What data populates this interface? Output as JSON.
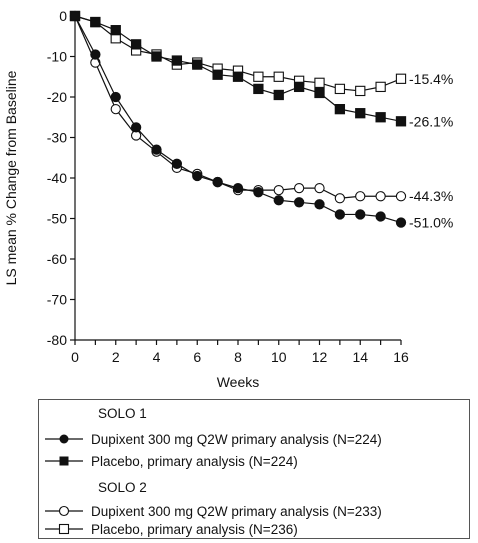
{
  "chart_data": {
    "type": "line",
    "title": "",
    "xlabel": "Weeks",
    "ylabel": "LS mean % Change from Baseline",
    "xlim": [
      0,
      16
    ],
    "ylim": [
      -80,
      0
    ],
    "x_ticks": [
      "0",
      "2",
      "4",
      "6",
      "8",
      "10",
      "12",
      "14",
      "16"
    ],
    "y_ticks": [
      "0",
      "-10",
      "-20",
      "-30",
      "-40",
      "-50",
      "-60",
      "-70",
      "-80"
    ],
    "grid": false,
    "legend_position": "bottom",
    "x": [
      0,
      1,
      2,
      3,
      4,
      5,
      6,
      7,
      8,
      9,
      10,
      11,
      12,
      13,
      14,
      15,
      16
    ],
    "series": [
      {
        "name": "Dupixent 300 mg Q2W primary analysis (N=224)",
        "group": "SOLO 1",
        "marker": "filled-circle",
        "values": [
          0,
          -9.5,
          -20,
          -27.5,
          -33,
          -36.5,
          -39.5,
          -41,
          -42.5,
          -43.5,
          -45.5,
          -46,
          -46.5,
          -49,
          -49,
          -49.5,
          -51
        ],
        "end_label": "-51.0%"
      },
      {
        "name": "Placebo, primary analysis (N=224)",
        "group": "SOLO 1",
        "marker": "filled-square",
        "values": [
          0,
          -1.5,
          -3.5,
          -7,
          -10,
          -11,
          -12,
          -14.5,
          -15,
          -18,
          -19.5,
          -17.5,
          -19,
          -23,
          -24,
          -25,
          -26
        ],
        "end_label": "-26.1%"
      },
      {
        "name": "Dupixent 300 mg Q2W primary analysis (N=233)",
        "group": "SOLO 2",
        "marker": "open-circle",
        "values": [
          0,
          -11.5,
          -23,
          -29.5,
          -33.5,
          -37.5,
          -39,
          -41,
          -43,
          -43,
          -43,
          -42.5,
          -42.5,
          -45,
          -44.5,
          -44.5,
          -44.5
        ],
        "end_label": "-44.3%"
      },
      {
        "name": "Placebo, primary analysis (N=236)",
        "group": "SOLO 2",
        "marker": "open-square",
        "values": [
          0,
          -1.5,
          -5.5,
          -8.5,
          -9.5,
          -12,
          -11.5,
          -13,
          -13.5,
          -15,
          -15,
          -16,
          -16.5,
          -18,
          -18.5,
          -17.5,
          -15.5
        ],
        "end_label": "-15.4%"
      }
    ]
  },
  "legend": {
    "groups": [
      {
        "title": "SOLO 1",
        "items": [
          0,
          1
        ]
      },
      {
        "title": "SOLO 2",
        "items": [
          2,
          3
        ]
      }
    ]
  }
}
